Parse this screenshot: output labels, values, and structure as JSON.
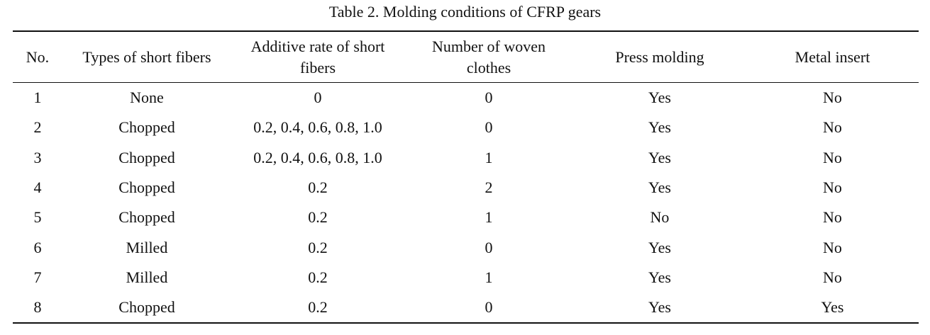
{
  "caption": "Table 2. Molding conditions of CFRP gears",
  "columns": {
    "no": "No.",
    "type": "Types of short fibers",
    "rate_line1": "Additive rate of short",
    "rate_line2": "fibers",
    "woven_line1": "Number of woven",
    "woven_line2": "clothes",
    "press": "Press molding",
    "metal": "Metal insert"
  },
  "rows": [
    {
      "no": "1",
      "type": "None",
      "rate": "0",
      "woven": "0",
      "press": "Yes",
      "metal": "No"
    },
    {
      "no": "2",
      "type": "Chopped",
      "rate": "0.2, 0.4, 0.6, 0.8, 1.0",
      "woven": "0",
      "press": "Yes",
      "metal": "No"
    },
    {
      "no": "3",
      "type": "Chopped",
      "rate": "0.2, 0.4, 0.6, 0.8, 1.0",
      "woven": "1",
      "press": "Yes",
      "metal": "No"
    },
    {
      "no": "4",
      "type": "Chopped",
      "rate": "0.2",
      "woven": "2",
      "press": "Yes",
      "metal": "No"
    },
    {
      "no": "5",
      "type": "Chopped",
      "rate": "0.2",
      "woven": "1",
      "press": "No",
      "metal": "No"
    },
    {
      "no": "6",
      "type": "Milled",
      "rate": "0.2",
      "woven": "0",
      "press": "Yes",
      "metal": "No"
    },
    {
      "no": "7",
      "type": "Milled",
      "rate": "0.2",
      "woven": "1",
      "press": "Yes",
      "metal": "No"
    },
    {
      "no": "8",
      "type": "Chopped",
      "rate": "0.2",
      "woven": "0",
      "press": "Yes",
      "metal": "Yes"
    }
  ]
}
